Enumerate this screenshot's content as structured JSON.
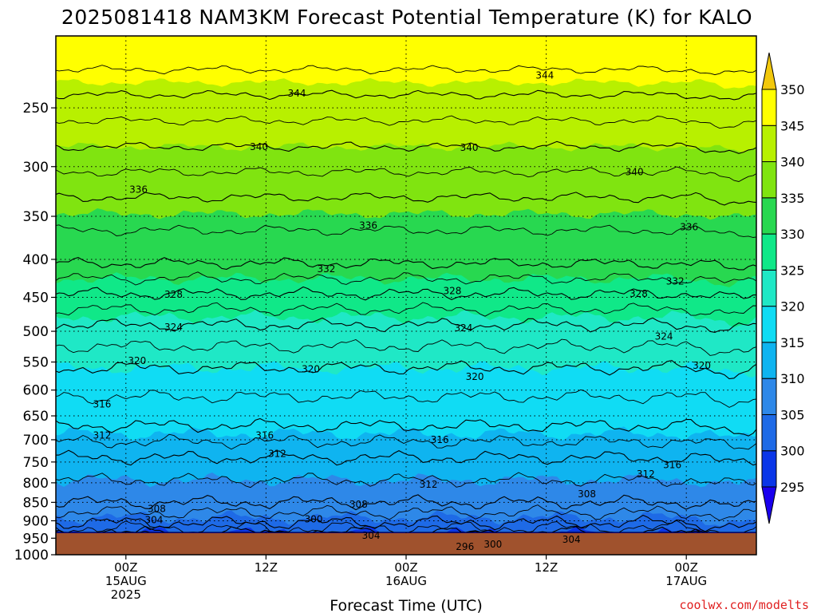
{
  "title": "2025081418 NAM3KM Forecast Potential Temperature (K) for KALO",
  "credit": "coolwx.com/modelts",
  "colors": {
    "ground": "#a0522d",
    "contour": "#000000",
    "grid": "#000000"
  },
  "chart_data": {
    "type": "contour",
    "title": "2025081418 NAM3KM Forecast Potential Temperature (K) for KALO",
    "xlabel": "Forecast Time (UTC)",
    "ylabel": "",
    "x_range_hours": [
      -5,
      45
    ],
    "x_ticks": [
      {
        "hour": 0,
        "lines": [
          "00Z",
          "15AUG",
          "2025"
        ]
      },
      {
        "hour": 10,
        "lines": [
          "12Z"
        ]
      },
      {
        "hour": 20,
        "lines": [
          "00Z",
          "16AUG"
        ]
      },
      {
        "hour": 30,
        "lines": [
          "12Z"
        ]
      },
      {
        "hour": 40,
        "lines": [
          "00Z",
          "17AUG"
        ]
      }
    ],
    "y_axis": "pressure (hPa), log scale, inverted",
    "y_range": [
      200,
      1000
    ],
    "y_ticks": [
      250,
      300,
      350,
      400,
      450,
      500,
      550,
      600,
      650,
      700,
      750,
      800,
      850,
      900,
      950,
      1000
    ],
    "colorbar": {
      "levels": [
        295,
        300,
        305,
        310,
        315,
        320,
        325,
        330,
        335,
        340,
        345,
        350
      ],
      "colors": [
        "#1a00ee",
        "#0a36e8",
        "#1e6ae6",
        "#2e88e8",
        "#0fb4f0",
        "#10dcf4",
        "#1fe8c6",
        "#10e888",
        "#28d850",
        "#80e410",
        "#b8f000",
        "#ffff00",
        "#f2c80c"
      ],
      "extend": "both"
    },
    "contour_levels": [
      296,
      300,
      304,
      308,
      312,
      316,
      320,
      324,
      328,
      332,
      336,
      340,
      344
    ],
    "contour_pressure_mean": [
      {
        "theta": 344,
        "pressure": 240
      },
      {
        "theta": 340,
        "pressure": 282
      },
      {
        "theta": 336,
        "pressure": 330
      },
      {
        "theta": 332,
        "pressure": 405
      },
      {
        "theta": 328,
        "pressure": 445
      },
      {
        "theta": 324,
        "pressure": 490
      },
      {
        "theta": 320,
        "pressure": 560
      },
      {
        "theta": 316,
        "pressure": 670
      },
      {
        "theta": 312,
        "pressure": 740
      },
      {
        "theta": 308,
        "pressure": 850
      },
      {
        "theta": 304,
        "pressure": 905
      },
      {
        "theta": 300,
        "pressure": 935
      },
      {
        "theta": 296,
        "pressure": 960
      }
    ],
    "contour_labels": [
      {
        "text": "344",
        "hour": 12.2,
        "p": 239
      },
      {
        "text": "344",
        "hour": 29.9,
        "p": 226
      },
      {
        "text": "340",
        "hour": 9.5,
        "p": 282
      },
      {
        "text": "340",
        "hour": 24.5,
        "p": 283
      },
      {
        "text": "340",
        "hour": 36.3,
        "p": 305
      },
      {
        "text": "336",
        "hour": 0.9,
        "p": 322
      },
      {
        "text": "336",
        "hour": 17.3,
        "p": 360
      },
      {
        "text": "336",
        "hour": 40.2,
        "p": 362
      },
      {
        "text": "332",
        "hour": 14.3,
        "p": 412
      },
      {
        "text": "332",
        "hour": 39.2,
        "p": 428
      },
      {
        "text": "328",
        "hour": 3.4,
        "p": 446
      },
      {
        "text": "328",
        "hour": 23.3,
        "p": 441
      },
      {
        "text": "328",
        "hour": 36.6,
        "p": 445
      },
      {
        "text": "324",
        "hour": 3.4,
        "p": 494
      },
      {
        "text": "324",
        "hour": 24.1,
        "p": 495
      },
      {
        "text": "324",
        "hour": 38.4,
        "p": 508
      },
      {
        "text": "320",
        "hour": 0.8,
        "p": 548
      },
      {
        "text": "320",
        "hour": 13.2,
        "p": 562
      },
      {
        "text": "320",
        "hour": 24.9,
        "p": 576
      },
      {
        "text": "320",
        "hour": 41.1,
        "p": 556
      },
      {
        "text": "316",
        "hour": -1.7,
        "p": 627
      },
      {
        "text": "316",
        "hour": 9.9,
        "p": 691
      },
      {
        "text": "316",
        "hour": 22.4,
        "p": 700
      },
      {
        "text": "316",
        "hour": 39.0,
        "p": 757
      },
      {
        "text": "312",
        "hour": -1.7,
        "p": 691
      },
      {
        "text": "312",
        "hour": 10.8,
        "p": 731
      },
      {
        "text": "312",
        "hour": 21.6,
        "p": 804
      },
      {
        "text": "312",
        "hour": 37.1,
        "p": 779
      },
      {
        "text": "308",
        "hour": 2.2,
        "p": 867
      },
      {
        "text": "308",
        "hour": 16.6,
        "p": 856
      },
      {
        "text": "308",
        "hour": 32.9,
        "p": 828
      },
      {
        "text": "304",
        "hour": 2.0,
        "p": 898
      },
      {
        "text": "304",
        "hour": 17.5,
        "p": 942
      },
      {
        "text": "304",
        "hour": 31.8,
        "p": 954
      },
      {
        "text": "300",
        "hour": 13.4,
        "p": 896
      },
      {
        "text": "300",
        "hour": 26.2,
        "p": 968
      },
      {
        "text": "296",
        "hour": 24.2,
        "p": 975
      }
    ]
  }
}
